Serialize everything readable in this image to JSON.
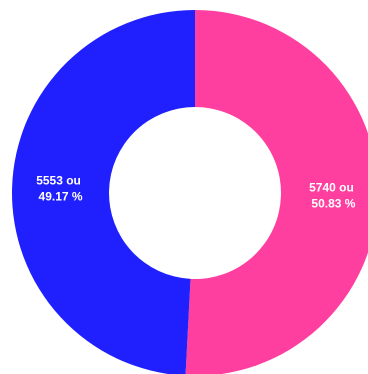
{
  "chart_data": {
    "type": "pie",
    "donut": true,
    "categories": [
      "",
      ""
    ],
    "slices": [
      {
        "value": 5740,
        "percent": 50.83,
        "color": "#ff3f9f",
        "label_line1": "5740 ou",
        "label_line2": "50.83 %"
      },
      {
        "value": 5553,
        "percent": 49.17,
        "color": "#2020ff",
        "label_line1": "5553 ou",
        "label_line2": "49.17 %"
      }
    ],
    "legend": "none"
  }
}
